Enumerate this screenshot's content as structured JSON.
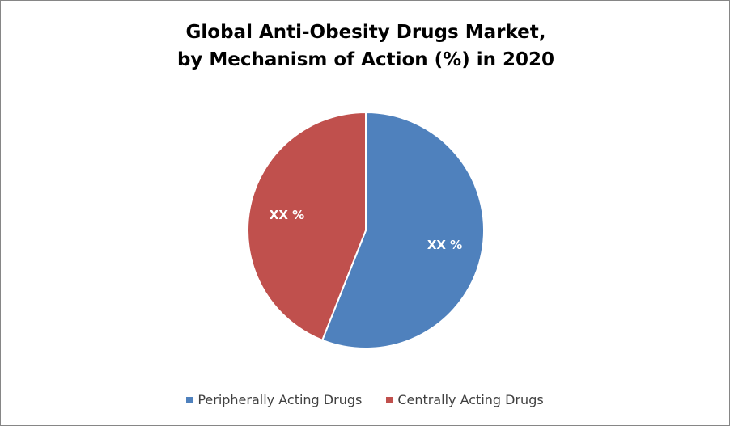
{
  "chart_data": {
    "type": "pie",
    "title": [
      "Global Anti-Obesity Drugs Market,",
      "by Mechanism of Action (%) in 2020"
    ],
    "categories": [
      "Peripherally Acting Drugs",
      "Centrally Acting Drugs"
    ],
    "values": [
      56,
      44
    ],
    "value_labels": [
      "XX %",
      "XX %"
    ],
    "colors": [
      "#4f81bd",
      "#c0504d"
    ],
    "legend": "bottom"
  }
}
